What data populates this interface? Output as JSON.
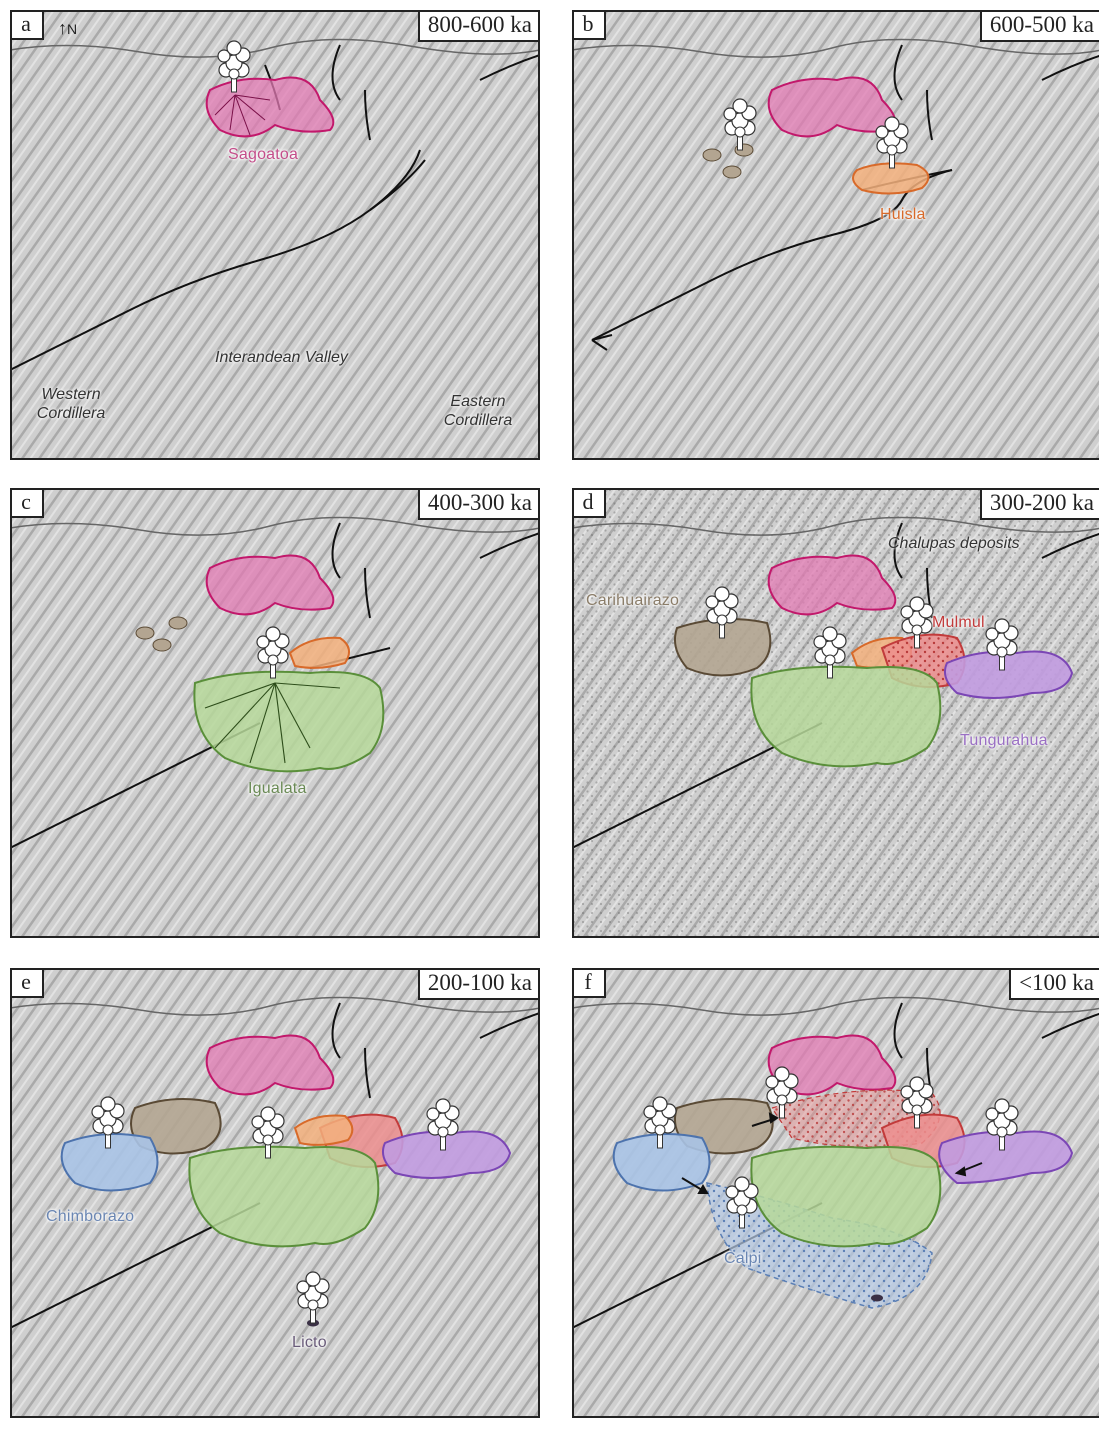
{
  "colors": {
    "sagoatoa": "#e27ab3",
    "huisla": "#f3b07d",
    "igualata": "#b6d89a",
    "carihuairazo": "#b3a591",
    "mulmul": "#ec8d8d",
    "tungurahua": "#c19be0",
    "chimborazo": "#a9c3e6",
    "calpi": "#b7cbe6",
    "terrain": "#c7c7c7",
    "fault": "#111111"
  },
  "icons": {
    "eruption": "eruption-plume-icon",
    "north": "north-arrow-icon"
  },
  "panels": [
    {
      "id": "a",
      "letter": "a",
      "age": "800-600 ka",
      "north": "N",
      "labels": {
        "sagoatoa": "Sagoatoa",
        "valley": "Interandean Valley",
        "western": "Western Cordillera",
        "eastern": "Eastern Cordillera"
      }
    },
    {
      "id": "b",
      "letter": "b",
      "age": "600-500 ka",
      "labels": {
        "huisla": "Huisla"
      }
    },
    {
      "id": "c",
      "letter": "c",
      "age": "400-300 ka",
      "labels": {
        "igualata": "Igualata"
      }
    },
    {
      "id": "d",
      "letter": "d",
      "age": "300-200 ka",
      "labels": {
        "chalupas": "Chalupas deposits",
        "carihuairazo": "Carihuairazo",
        "mulmul": "Mulmul",
        "tungurahua": "Tungurahua"
      }
    },
    {
      "id": "e",
      "letter": "e",
      "age": "200-100 ka",
      "labels": {
        "chimborazo": "Chimborazo",
        "licto": "Licto"
      }
    },
    {
      "id": "f",
      "letter": "f",
      "age": "<100 ka",
      "labels": {
        "calpi": "Calpi"
      }
    }
  ]
}
